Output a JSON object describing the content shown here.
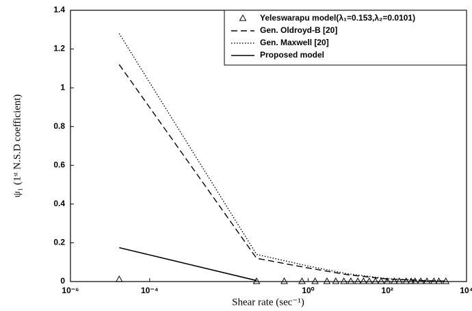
{
  "chart_data": {
    "type": "line",
    "xlabel": "Shear rate (sec⁻¹)",
    "ylabel": "ψ₁ (1ˢᵗ N.S.D coefficient)",
    "xscale": "log",
    "xlim": [
      1e-06,
      10000
    ],
    "xticks": [
      {
        "value": 1e-06,
        "label": "10⁻⁶"
      },
      {
        "value": 0.0001,
        "label": "10⁻⁴"
      },
      {
        "value": 1,
        "label": "10⁰"
      },
      {
        "value": 100,
        "label": "10²"
      },
      {
        "value": 10000,
        "label": "10⁴"
      }
    ],
    "ylim": [
      0,
      1.4
    ],
    "yticks": [
      0,
      0.2,
      0.4,
      0.6,
      0.8,
      1,
      1.2,
      1.4
    ],
    "legend": "upper right",
    "series": [
      {
        "name": "Yeleswarapu model(λ₁=0.153,λ₂=0.0101)",
        "color": "#000000",
        "style": "triangle",
        "x": [
          1.7e-05,
          0.05,
          0.25,
          0.7,
          1.5,
          3,
          5,
          8,
          12,
          18,
          25,
          35,
          50,
          70,
          100,
          150,
          200,
          300,
          400,
          500,
          700,
          1000,
          1500,
          2000,
          3000
        ],
        "values": [
          0.01,
          0,
          0,
          0,
          0,
          0,
          0,
          0,
          0,
          0,
          0,
          0,
          0,
          0,
          0,
          0,
          0,
          0,
          0,
          0,
          0,
          0,
          0,
          0,
          0
        ]
      },
      {
        "name": "Gen. Oldroyd-B [20]",
        "color": "#000000",
        "style": "dashed",
        "x": [
          1.7e-05,
          0.05,
          1,
          10,
          100,
          1000,
          3000
        ],
        "values": [
          1.12,
          0.12,
          0.07,
          0.035,
          0.013,
          0.004,
          0.002
        ]
      },
      {
        "name": "Gen. Maxwell [20]",
        "color": "#000000",
        "style": "dotted",
        "x": [
          1.7e-05,
          0.05,
          1,
          10,
          100,
          1000,
          3000
        ],
        "values": [
          1.28,
          0.14,
          0.08,
          0.04,
          0.015,
          0.005,
          0.003
        ]
      },
      {
        "name": "Proposed model",
        "color": "#000000",
        "style": "solid",
        "x": [
          1.7e-05,
          0.05
        ],
        "values": [
          0.175,
          0.005
        ]
      }
    ]
  }
}
